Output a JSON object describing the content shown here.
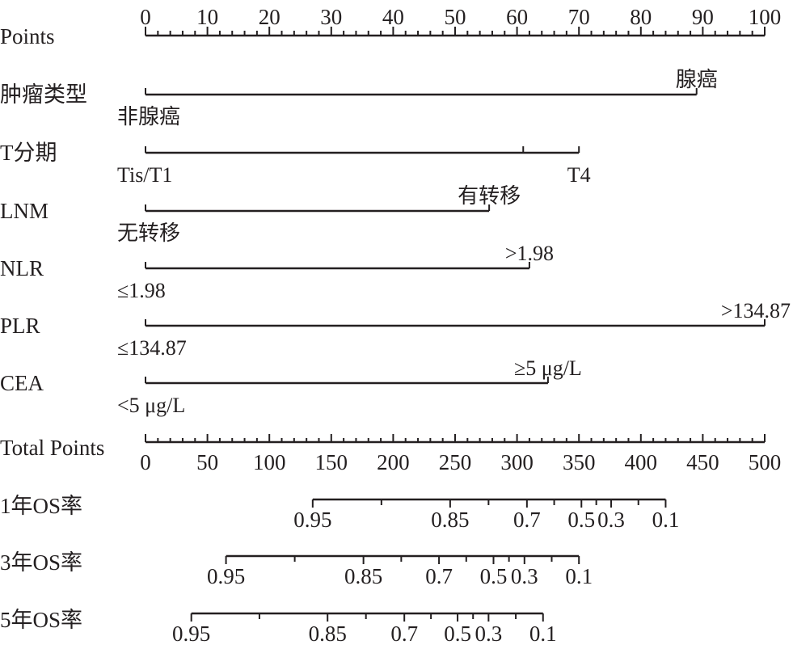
{
  "chart_data": {
    "type": "nomogram",
    "points_axis": {
      "label": "Points",
      "range": [
        0,
        100
      ],
      "tick_labels": [
        "0",
        "10",
        "20",
        "30",
        "40",
        "50",
        "60",
        "70",
        "80",
        "90",
        "100"
      ]
    },
    "predictors": [
      {
        "name": "肿瘤类型",
        "levels": [
          {
            "label": "非腺癌",
            "points": 0
          },
          {
            "label": "腺癌",
            "points": 89
          }
        ]
      },
      {
        "name": "T分期",
        "levels": [
          {
            "label": "Tis/T1",
            "points": 0
          },
          {
            "label": "",
            "points": 61
          },
          {
            "label": "T4",
            "points": 70
          }
        ]
      },
      {
        "name": "LNM",
        "levels": [
          {
            "label": "无转移",
            "points": 0
          },
          {
            "label": "有转移",
            "points": 55.5
          }
        ]
      },
      {
        "name": "NLR",
        "levels": [
          {
            "label": "≤1.98",
            "points": 0
          },
          {
            "label": ">1.98",
            "points": 62
          }
        ]
      },
      {
        "name": "PLR",
        "levels": [
          {
            "label": "≤134.87",
            "points": 0
          },
          {
            "label": ">134.87",
            "points": 100
          }
        ]
      },
      {
        "name": "CEA",
        "levels": [
          {
            "label": "<5 μg/L",
            "points": 0
          },
          {
            "label": "≥5 μg/L",
            "points": 65
          }
        ]
      }
    ],
    "total_points_axis": {
      "label": "Total Points",
      "range": [
        0,
        500
      ],
      "tick_labels": [
        "0",
        "50",
        "100",
        "150",
        "200",
        "250",
        "300",
        "350",
        "400",
        "450",
        "500"
      ]
    },
    "survival_scales": [
      {
        "name": "1年OS率",
        "range_total_points": [
          135,
          420
        ],
        "ticks": [
          {
            "label": "0.95",
            "total_points": 135
          },
          {
            "label": "0.85",
            "total_points": 246
          },
          {
            "label": "0.7",
            "total_points": 308
          },
          {
            "label": "0.5",
            "total_points": 352
          },
          {
            "label": "0.3",
            "total_points": 376
          },
          {
            "label": "0.1",
            "total_points": 420
          }
        ]
      },
      {
        "name": "3年OS率",
        "range_total_points": [
          65,
          350
        ],
        "ticks": [
          {
            "label": "0.95",
            "total_points": 65
          },
          {
            "label": "0.85",
            "total_points": 176
          },
          {
            "label": "0.7",
            "total_points": 237
          },
          {
            "label": "0.5",
            "total_points": 281
          },
          {
            "label": "0.3",
            "total_points": 306
          },
          {
            "label": "0.1",
            "total_points": 350
          }
        ]
      },
      {
        "name": "5年OS率",
        "range_total_points": [
          37,
          321
        ],
        "ticks": [
          {
            "label": "0.95",
            "total_points": 37
          },
          {
            "label": "0.85",
            "total_points": 147
          },
          {
            "label": "0.7",
            "total_points": 209
          },
          {
            "label": "0.5",
            "total_points": 252
          },
          {
            "label": "0.3",
            "total_points": 277
          },
          {
            "label": "0.1",
            "total_points": 321
          }
        ]
      }
    ]
  }
}
